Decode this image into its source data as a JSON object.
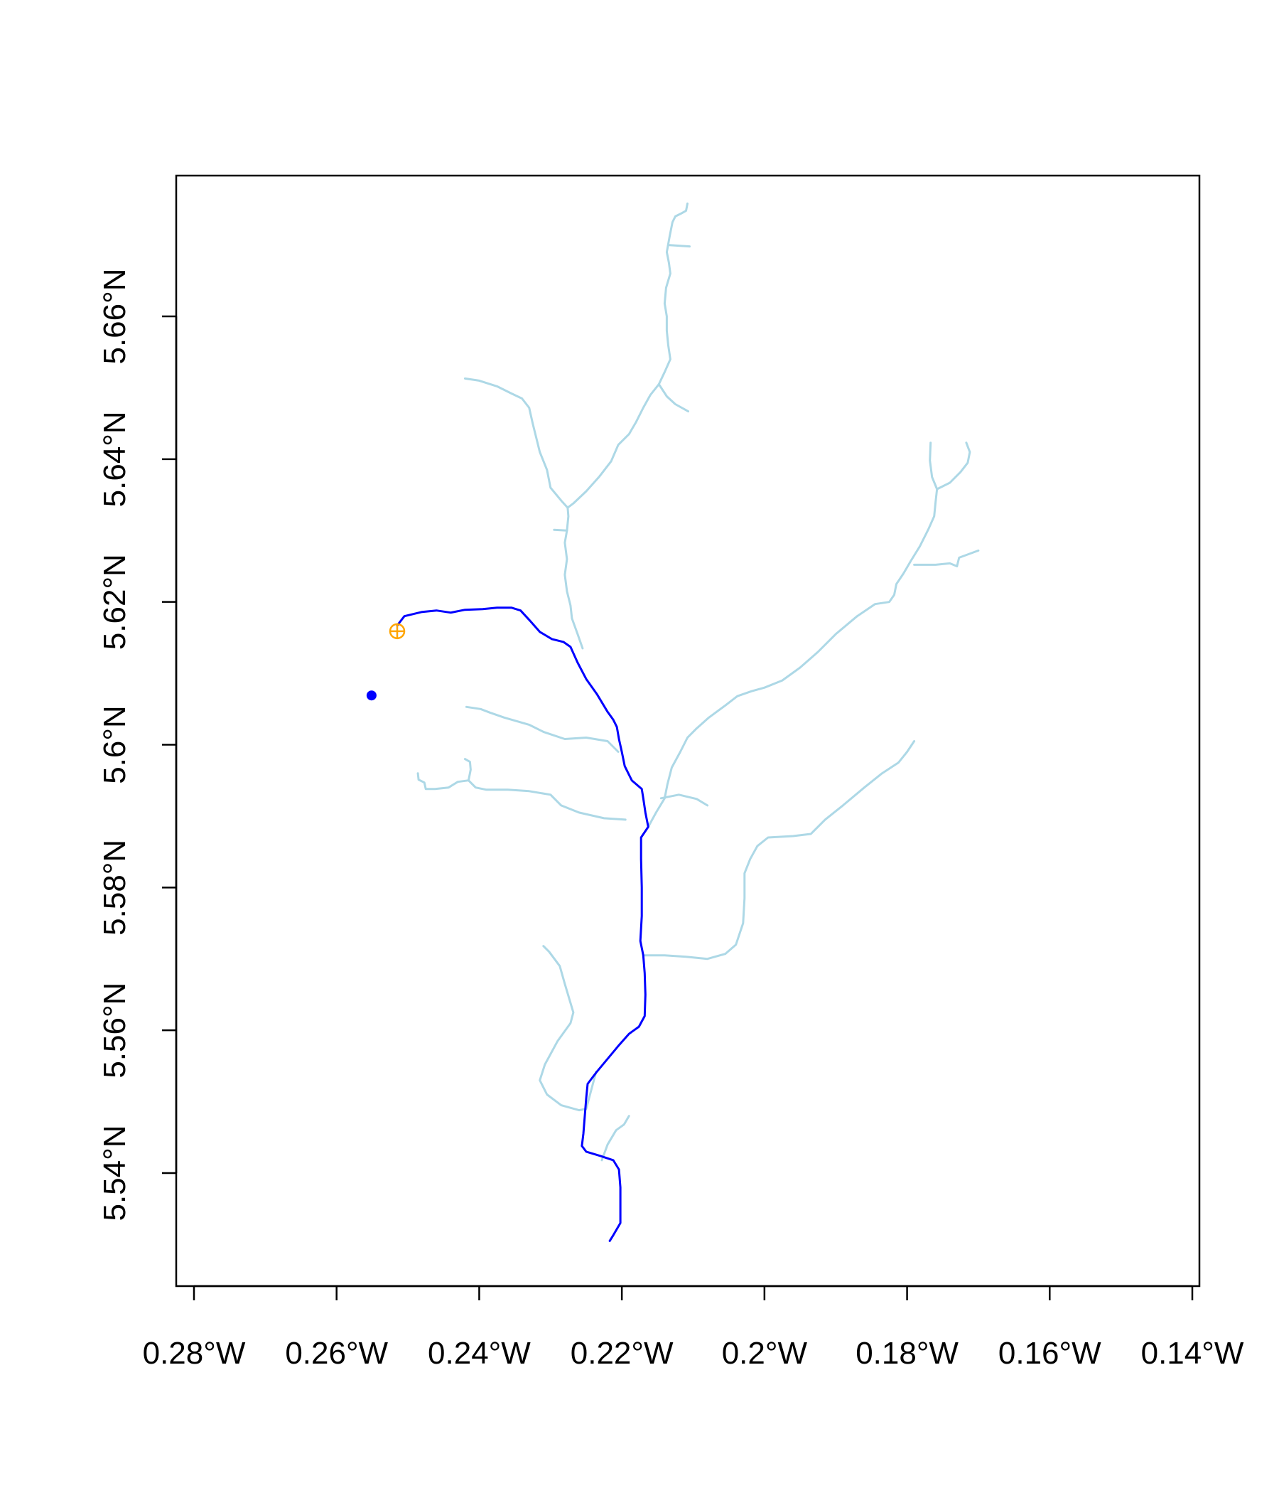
{
  "map": {
    "x_axis": {
      "ticks": [
        {
          "value": -0.28,
          "label": "0.28°W"
        },
        {
          "value": -0.26,
          "label": "0.26°W"
        },
        {
          "value": -0.24,
          "label": "0.24°W"
        },
        {
          "value": -0.22,
          "label": "0.22°W"
        },
        {
          "value": -0.2,
          "label": "0.2°W"
        },
        {
          "value": -0.18,
          "label": "0.18°W"
        },
        {
          "value": -0.16,
          "label": "0.16°W"
        },
        {
          "value": -0.14,
          "label": "0.14°W"
        }
      ]
    },
    "y_axis": {
      "ticks": [
        {
          "value": 5.54,
          "label": "5.54°N"
        },
        {
          "value": 5.56,
          "label": "5.56°N"
        },
        {
          "value": 5.58,
          "label": "5.58°N"
        },
        {
          "value": 5.6,
          "label": "5.6°N"
        },
        {
          "value": 5.62,
          "label": "5.62°N"
        },
        {
          "value": 5.64,
          "label": "5.64°N"
        },
        {
          "value": 5.66,
          "label": "5.66°N"
        }
      ]
    },
    "colors": {
      "stream_network": "#add8e6",
      "flow_path": "#0000ff",
      "start_point": "#0000ff",
      "snapped_point": "#ffa500",
      "frame": "#000000"
    },
    "start_point": {
      "lon": -0.2551,
      "lat": 5.6069
    },
    "snapped_point": {
      "lon": -0.2515,
      "lat": 5.6159
    },
    "flow_path": [
      [
        -0.2515,
        5.6167
      ],
      [
        -0.2505,
        5.618
      ],
      [
        -0.248,
        5.6186
      ],
      [
        -0.246,
        5.6188
      ],
      [
        -0.244,
        5.6185
      ],
      [
        -0.242,
        5.6189
      ],
      [
        -0.2395,
        5.619
      ],
      [
        -0.2375,
        5.6192
      ],
      [
        -0.2355,
        5.6192
      ],
      [
        -0.2342,
        5.6188
      ],
      [
        -0.233,
        5.6175
      ],
      [
        -0.2315,
        5.6158
      ],
      [
        -0.2298,
        5.6148
      ],
      [
        -0.2282,
        5.6144
      ],
      [
        -0.2272,
        5.6137
      ],
      [
        -0.2262,
        5.6115
      ],
      [
        -0.225,
        5.6092
      ],
      [
        -0.2235,
        5.6071
      ],
      [
        -0.222,
        5.6046
      ],
      [
        -0.2212,
        5.6035
      ],
      [
        -0.2207,
        5.6025
      ],
      [
        -0.2204,
        5.6008
      ],
      [
        -0.22,
        5.599
      ],
      [
        -0.2196,
        5.597
      ],
      [
        -0.2186,
        5.595
      ],
      [
        -0.2172,
        5.5938
      ],
      [
        -0.217,
        5.5925
      ],
      [
        -0.2167,
        5.5905
      ],
      [
        -0.2163,
        5.5885
      ],
      [
        -0.2173,
        5.587
      ],
      [
        -0.2173,
        5.584
      ],
      [
        -0.2172,
        5.58
      ],
      [
        -0.2172,
        5.576
      ],
      [
        -0.2174,
        5.5725
      ],
      [
        -0.217,
        5.5705
      ],
      [
        -0.2168,
        5.568
      ],
      [
        -0.2167,
        5.565
      ],
      [
        -0.2168,
        5.562
      ],
      [
        -0.2176,
        5.5605
      ],
      [
        -0.219,
        5.5595
      ],
      [
        -0.2205,
        5.5578
      ],
      [
        -0.222,
        5.556
      ],
      [
        -0.2235,
        5.5542
      ],
      [
        -0.2248,
        5.5525
      ],
      [
        -0.225,
        5.5505
      ],
      [
        -0.2252,
        5.548
      ],
      [
        -0.2254,
        5.5455
      ],
      [
        -0.2256,
        5.5438
      ],
      [
        -0.225,
        5.543
      ],
      [
        -0.223,
        5.5424
      ],
      [
        -0.2212,
        5.5418
      ],
      [
        -0.2204,
        5.5405
      ],
      [
        -0.2202,
        5.538
      ],
      [
        -0.2202,
        5.535
      ],
      [
        -0.2202,
        5.533
      ],
      [
        -0.2212,
        5.5313
      ],
      [
        -0.2217,
        5.5305
      ]
    ],
    "streams": [
      [
        [
          -0.2163,
          5.5885
        ],
        [
          -0.2152,
          5.5905
        ],
        [
          -0.214,
          5.5925
        ],
        [
          -0.2136,
          5.5945
        ],
        [
          -0.213,
          5.5968
        ],
        [
          -0.2118,
          5.599
        ],
        [
          -0.2108,
          5.601
        ],
        [
          -0.2096,
          5.6022
        ],
        [
          -0.2078,
          5.6038
        ],
        [
          -0.2055,
          5.6055
        ],
        [
          -0.2038,
          5.6068
        ],
        [
          -0.2018,
          5.6075
        ],
        [
          -0.2,
          5.608
        ],
        [
          -0.1975,
          5.609
        ],
        [
          -0.195,
          5.6108
        ],
        [
          -0.1925,
          5.613
        ],
        [
          -0.19,
          5.6155
        ],
        [
          -0.187,
          5.618
        ],
        [
          -0.1845,
          5.6197
        ],
        [
          -0.1825,
          5.62
        ],
        [
          -0.1818,
          5.621
        ],
        [
          -0.1815,
          5.6225
        ],
        [
          -0.1805,
          5.624
        ],
        [
          -0.1795,
          5.6257
        ],
        [
          -0.1782,
          5.6278
        ],
        [
          -0.177,
          5.6302
        ],
        [
          -0.1762,
          5.632
        ],
        [
          -0.176,
          5.634
        ],
        [
          -0.1758,
          5.6358
        ],
        [
          -0.1765,
          5.6375
        ],
        [
          -0.1768,
          5.6398
        ],
        [
          -0.1767,
          5.6423
        ]
      ],
      [
        [
          -0.1758,
          5.6358
        ],
        [
          -0.174,
          5.6367
        ],
        [
          -0.1725,
          5.6382
        ],
        [
          -0.1715,
          5.6395
        ],
        [
          -0.1712,
          5.641
        ],
        [
          -0.1717,
          5.6423
        ]
      ],
      [
        [
          -0.179,
          5.6252
        ],
        [
          -0.176,
          5.6252
        ],
        [
          -0.174,
          5.6254
        ],
        [
          -0.173,
          5.625
        ],
        [
          -0.1727,
          5.6262
        ],
        [
          -0.17,
          5.6272
        ]
      ],
      [
        [
          -0.2255,
          5.6135
        ],
        [
          -0.2262,
          5.6155
        ],
        [
          -0.227,
          5.6177
        ],
        [
          -0.2272,
          5.6195
        ],
        [
          -0.2277,
          5.6215
        ],
        [
          -0.228,
          5.6238
        ],
        [
          -0.2277,
          5.626
        ],
        [
          -0.228,
          5.6283
        ],
        [
          -0.2277,
          5.63
        ],
        [
          -0.2275,
          5.632
        ],
        [
          -0.2276,
          5.6332
        ],
        [
          -0.2268,
          5.6338
        ],
        [
          -0.225,
          5.6355
        ],
        [
          -0.2232,
          5.6375
        ],
        [
          -0.2215,
          5.6397
        ],
        [
          -0.2205,
          5.642
        ],
        [
          -0.219,
          5.6435
        ],
        [
          -0.218,
          5.6452
        ],
        [
          -0.217,
          5.6472
        ],
        [
          -0.216,
          5.649
        ],
        [
          -0.2148,
          5.6505
        ],
        [
          -0.214,
          5.6522
        ],
        [
          -0.2132,
          5.654
        ],
        [
          -0.2135,
          5.656
        ],
        [
          -0.2137,
          5.658
        ],
        [
          -0.2137,
          5.66
        ],
        [
          -0.214,
          5.6618
        ],
        [
          -0.2138,
          5.664
        ],
        [
          -0.2132,
          5.666
        ],
        [
          -0.2134,
          5.6675
        ],
        [
          -0.2137,
          5.669
        ],
        [
          -0.2133,
          5.6712
        ],
        [
          -0.2129,
          5.6732
        ],
        [
          -0.2125,
          5.674
        ],
        [
          -0.2117,
          5.6744
        ],
        [
          -0.211,
          5.6748
        ],
        [
          -0.2108,
          5.6758
        ]
      ],
      [
        [
          -0.2148,
          5.6505
        ],
        [
          -0.2137,
          5.6488
        ],
        [
          -0.2125,
          5.6477
        ],
        [
          -0.2107,
          5.6467
        ]
      ],
      [
        [
          -0.2135,
          5.67
        ],
        [
          -0.2105,
          5.6698
        ]
      ],
      [
        [
          -0.2276,
          5.6332
        ],
        [
          -0.2285,
          5.6342
        ],
        [
          -0.23,
          5.636
        ],
        [
          -0.2305,
          5.6385
        ],
        [
          -0.2315,
          5.641
        ],
        [
          -0.232,
          5.643
        ],
        [
          -0.2325,
          5.645
        ],
        [
          -0.233,
          5.6472
        ],
        [
          -0.234,
          5.6485
        ],
        [
          -0.2355,
          5.6492
        ],
        [
          -0.2375,
          5.6502
        ],
        [
          -0.24,
          5.651
        ],
        [
          -0.242,
          5.6513
        ]
      ],
      [
        [
          -0.2277,
          5.63
        ],
        [
          -0.2295,
          5.6301
        ]
      ],
      [
        [
          -0.217,
          5.5705
        ],
        [
          -0.214,
          5.5705
        ],
        [
          -0.211,
          5.5703
        ],
        [
          -0.208,
          5.57
        ],
        [
          -0.2055,
          5.5707
        ],
        [
          -0.204,
          5.572
        ],
        [
          -0.203,
          5.575
        ],
        [
          -0.2028,
          5.5785
        ],
        [
          -0.2028,
          5.582
        ],
        [
          -0.202,
          5.584
        ],
        [
          -0.201,
          5.5858
        ],
        [
          -0.1995,
          5.587
        ],
        [
          -0.196,
          5.5872
        ],
        [
          -0.1935,
          5.5875
        ],
        [
          -0.1915,
          5.5895
        ],
        [
          -0.189,
          5.5915
        ],
        [
          -0.186,
          5.594
        ],
        [
          -0.1835,
          5.596
        ],
        [
          -0.1812,
          5.5975
        ],
        [
          -0.18,
          5.599
        ],
        [
          -0.179,
          5.6005
        ]
      ],
      [
        [
          -0.2195,
          5.5895
        ],
        [
          -0.2225,
          5.5897
        ],
        [
          -0.226,
          5.5905
        ],
        [
          -0.2285,
          5.5915
        ],
        [
          -0.23,
          5.593
        ],
        [
          -0.233,
          5.5935
        ],
        [
          -0.236,
          5.5937
        ],
        [
          -0.239,
          5.5937
        ],
        [
          -0.2405,
          5.594
        ],
        [
          -0.2415,
          5.595
        ],
        [
          -0.243,
          5.5948
        ],
        [
          -0.2443,
          5.594
        ],
        [
          -0.2462,
          5.5938
        ],
        [
          -0.2475,
          5.5938
        ],
        [
          -0.2477,
          5.5947
        ],
        [
          -0.2485,
          5.5951
        ],
        [
          -0.2486,
          5.596
        ]
      ],
      [
        [
          -0.2415,
          5.595
        ],
        [
          -0.2412,
          5.5965
        ],
        [
          -0.2413,
          5.5976
        ],
        [
          -0.242,
          5.598
        ]
      ],
      [
        [
          -0.2205,
          5.599
        ],
        [
          -0.222,
          5.6005
        ],
        [
          -0.225,
          5.601
        ],
        [
          -0.228,
          5.6008
        ],
        [
          -0.231,
          5.6018
        ],
        [
          -0.233,
          5.6028
        ],
        [
          -0.2365,
          5.6038
        ],
        [
          -0.2385,
          5.6045
        ],
        [
          -0.2398,
          5.605
        ],
        [
          -0.2418,
          5.6053
        ]
      ],
      [
        [
          -0.2145,
          5.5925
        ],
        [
          -0.212,
          5.593
        ],
        [
          -0.2095,
          5.5924
        ],
        [
          -0.208,
          5.5915
        ]
      ],
      [
        [
          -0.2236,
          5.5542
        ],
        [
          -0.225,
          5.549
        ],
        [
          -0.226,
          5.5488
        ],
        [
          -0.2285,
          5.5495
        ],
        [
          -0.2305,
          5.551
        ],
        [
          -0.2315,
          5.553
        ],
        [
          -0.2308,
          5.5552
        ],
        [
          -0.229,
          5.5585
        ],
        [
          -0.2272,
          5.561
        ],
        [
          -0.2268,
          5.5625
        ],
        [
          -0.228,
          5.5665
        ],
        [
          -0.2287,
          5.569
        ],
        [
          -0.2302,
          5.571
        ],
        [
          -0.231,
          5.5718
        ]
      ],
      [
        [
          -0.2228,
          5.5418
        ],
        [
          -0.222,
          5.544
        ],
        [
          -0.2208,
          5.546
        ],
        [
          -0.2197,
          5.5468
        ],
        [
          -0.219,
          5.548
        ]
      ]
    ]
  }
}
